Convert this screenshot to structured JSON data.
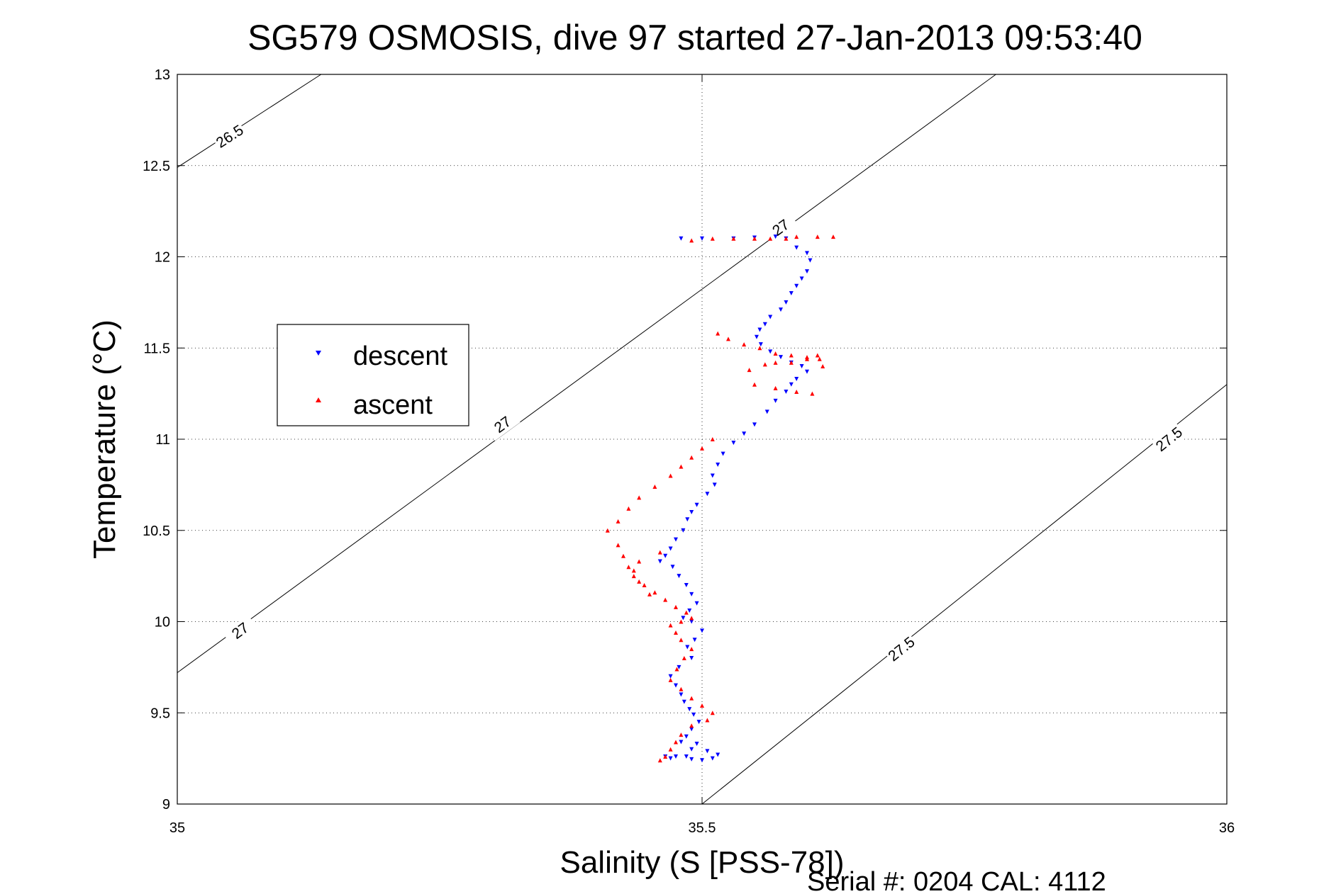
{
  "chart_data": {
    "type": "scatter",
    "title": "SG579 OSMOSIS, dive 97 started 27-Jan-2013 09:53:40",
    "xlabel": "Salinity (S [PSS-78])",
    "ylabel": "Temperature (°C)",
    "xlim": [
      35,
      36
    ],
    "ylim": [
      9,
      13
    ],
    "x_ticks": [
      "35",
      "35.5",
      "36"
    ],
    "y_ticks": [
      "9",
      "9.5",
      "10",
      "10.5",
      "11",
      "11.5",
      "12",
      "12.5",
      "13"
    ],
    "grid": "dotted",
    "legend_position": "center-left",
    "footer": "Serial #: 0204  CAL: 4112",
    "contours": [
      {
        "label": "26.5",
        "points": [
          [
            35.0,
            12.49
          ],
          [
            35.137,
            13.0
          ]
        ],
        "labels": [
          {
            "text": "26.5",
            "x": 35.05,
            "y": 12.66
          }
        ]
      },
      {
        "label": "27",
        "points": [
          [
            35.0,
            9.72
          ],
          [
            35.78,
            13.0
          ]
        ],
        "labels": [
          {
            "text": "27",
            "x": 35.06,
            "y": 9.95
          },
          {
            "text": "27",
            "x": 35.31,
            "y": 11.08
          },
          {
            "text": "27",
            "x": 35.575,
            "y": 12.16
          }
        ]
      },
      {
        "label": "27.5",
        "points": [
          [
            35.5,
            9.0
          ],
          [
            36.0,
            11.3
          ]
        ],
        "labels": [
          {
            "text": "27.5",
            "x": 35.69,
            "y": 9.85
          },
          {
            "text": "27.5",
            "x": 35.945,
            "y": 11.0
          }
        ]
      }
    ],
    "series": [
      {
        "name": "descent",
        "color": "#0000ff",
        "marker": "triangle-down",
        "x": [
          35.48,
          35.5,
          35.53,
          35.55,
          35.57,
          35.58,
          35.59,
          35.6,
          35.603,
          35.6,
          35.595,
          35.59,
          35.585,
          35.58,
          35.575,
          35.565,
          35.56,
          35.555,
          35.552,
          35.556,
          35.565,
          35.575,
          35.585,
          35.595,
          35.6,
          35.59,
          35.585,
          35.58,
          35.57,
          35.562,
          35.55,
          35.54,
          35.53,
          35.52,
          35.515,
          35.51,
          35.512,
          35.505,
          35.495,
          35.49,
          35.486,
          35.482,
          35.475,
          35.47,
          35.465,
          35.46,
          35.472,
          35.478,
          35.485,
          35.49,
          35.495,
          35.488,
          35.482,
          35.49,
          35.5,
          35.493,
          35.486,
          35.49,
          35.478,
          35.47,
          35.475,
          35.48,
          35.483,
          35.488,
          35.492,
          35.497,
          35.49,
          35.485,
          35.495,
          35.505,
          35.515,
          35.51,
          35.5,
          35.49,
          35.485,
          35.49,
          35.48,
          35.475,
          35.47,
          35.465
        ],
        "y": [
          12.1,
          12.1,
          12.1,
          12.105,
          12.11,
          12.1,
          12.05,
          12.02,
          11.98,
          11.92,
          11.88,
          11.84,
          11.8,
          11.75,
          11.71,
          11.67,
          11.63,
          11.6,
          11.56,
          11.52,
          11.48,
          11.45,
          11.42,
          11.4,
          11.37,
          11.33,
          11.3,
          11.26,
          11.21,
          11.15,
          11.08,
          11.03,
          10.98,
          10.92,
          10.86,
          10.8,
          10.75,
          10.7,
          10.64,
          10.6,
          10.56,
          10.5,
          10.45,
          10.4,
          10.36,
          10.33,
          10.3,
          10.25,
          10.2,
          10.15,
          10.1,
          10.06,
          10.02,
          10.0,
          9.95,
          9.9,
          9.86,
          9.8,
          9.75,
          9.7,
          9.65,
          9.6,
          9.56,
          9.52,
          9.49,
          9.45,
          9.41,
          9.37,
          9.33,
          9.29,
          9.27,
          9.25,
          9.24,
          9.245,
          9.26,
          9.3,
          9.34,
          9.26,
          9.25,
          9.26
        ]
      },
      {
        "name": "ascent",
        "color": "#ff0000",
        "marker": "triangle-up",
        "x": [
          35.49,
          35.51,
          35.53,
          35.55,
          35.565,
          35.58,
          35.59,
          35.61,
          35.625,
          35.61,
          35.6,
          35.585,
          35.57,
          35.56,
          35.545,
          35.55,
          35.57,
          35.59,
          35.605,
          35.615,
          35.612,
          35.6,
          35.585,
          35.57,
          35.555,
          35.54,
          35.525,
          35.515,
          35.51,
          35.5,
          35.49,
          35.48,
          35.47,
          35.455,
          35.44,
          35.43,
          35.42,
          35.41,
          35.42,
          35.425,
          35.43,
          35.435,
          35.445,
          35.455,
          35.465,
          35.475,
          35.485,
          35.49,
          35.48,
          35.47,
          35.475,
          35.48,
          35.49,
          35.483,
          35.476,
          35.47,
          35.48,
          35.49,
          35.5,
          35.51,
          35.505,
          35.49,
          35.48,
          35.475,
          35.47,
          35.465,
          35.46,
          35.45,
          35.44,
          35.435,
          35.44,
          35.46
        ],
        "y": [
          12.09,
          12.1,
          12.1,
          12.1,
          12.1,
          12.1,
          12.11,
          12.11,
          12.11,
          11.46,
          11.44,
          11.42,
          11.42,
          11.41,
          11.38,
          11.3,
          11.28,
          11.26,
          11.25,
          11.4,
          11.44,
          11.45,
          11.46,
          11.47,
          11.5,
          11.52,
          11.55,
          11.58,
          11.0,
          10.95,
          10.9,
          10.85,
          10.8,
          10.74,
          10.68,
          10.62,
          10.55,
          10.5,
          10.42,
          10.36,
          10.3,
          10.25,
          10.2,
          10.16,
          10.12,
          10.08,
          10.05,
          10.02,
          10.0,
          9.98,
          9.94,
          9.9,
          9.85,
          9.8,
          9.74,
          9.68,
          9.63,
          9.58,
          9.54,
          9.5,
          9.46,
          9.43,
          9.38,
          9.34,
          9.3,
          9.26,
          9.24,
          10.15,
          10.22,
          10.28,
          10.33,
          10.38
        ]
      }
    ]
  }
}
